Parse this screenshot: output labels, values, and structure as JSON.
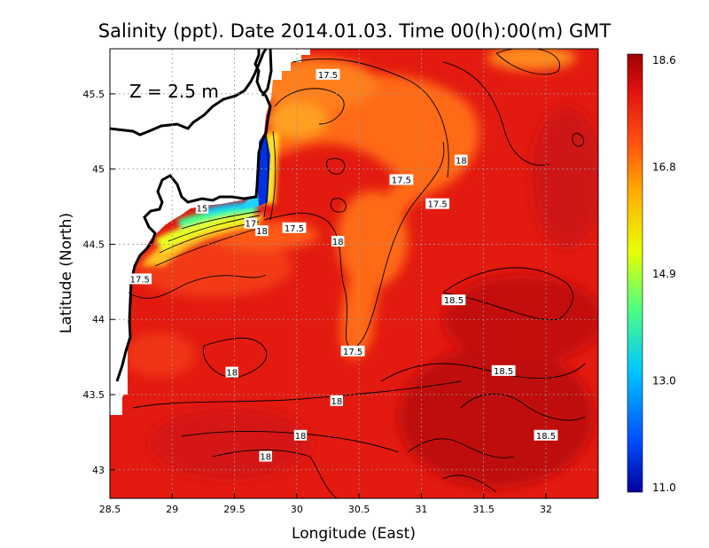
{
  "chart_data": {
    "type": "heatmap",
    "title": "Salinity (ppt). Date 2014.01.03. Time 00(h):00(m) GMT",
    "xlabel": "Longitude (East)",
    "ylabel": "Latitude (North)",
    "annotation": "Z = 2.5 m",
    "xlim": [
      28.5,
      32.42
    ],
    "ylim": [
      42.81,
      45.8
    ],
    "grid": true,
    "x_ticks": [
      28.5,
      29,
      29.5,
      30,
      30.5,
      31,
      31.5,
      32
    ],
    "x_tick_labels": [
      "28.5",
      "29",
      "29.5",
      "30",
      "30.5",
      "31",
      "31.5",
      "32"
    ],
    "y_ticks": [
      43,
      43.5,
      44,
      44.5,
      45,
      45.5
    ],
    "y_tick_labels": [
      "43",
      "43.5",
      "44",
      "44.5",
      "45",
      "45.5"
    ],
    "colorbar": {
      "min": 11.0,
      "max": 18.6,
      "tick_labels": [
        "18.6",
        "16.8",
        "14.9",
        "13.0",
        "11.0"
      ],
      "stops": [
        "#0000a0",
        "#0050ff",
        "#00c8ff",
        "#50ff80",
        "#e8ff00",
        "#ffb000",
        "#ff5010",
        "#e01010",
        "#a00000"
      ]
    },
    "contour_labels": [
      {
        "text": "17.5",
        "lon": 30.25,
        "lat": 45.63
      },
      {
        "text": "18",
        "lon": 31.32,
        "lat": 45.06
      },
      {
        "text": "17.5",
        "lon": 30.84,
        "lat": 44.93
      },
      {
        "text": "17.5",
        "lon": 31.13,
        "lat": 44.77
      },
      {
        "text": "15",
        "lon": 29.24,
        "lat": 44.74
      },
      {
        "text": "17",
        "lon": 29.63,
        "lat": 44.64
      },
      {
        "text": "18",
        "lon": 29.72,
        "lat": 44.59
      },
      {
        "text": "17.5",
        "lon": 29.98,
        "lat": 44.61
      },
      {
        "text": "18",
        "lon": 30.33,
        "lat": 44.52
      },
      {
        "text": "17.5",
        "lon": 28.74,
        "lat": 44.27
      },
      {
        "text": "18.5",
        "lon": 31.26,
        "lat": 44.13
      },
      {
        "text": "17.5",
        "lon": 30.45,
        "lat": 43.79
      },
      {
        "text": "18",
        "lon": 29.48,
        "lat": 43.65
      },
      {
        "text": "18.5",
        "lon": 31.66,
        "lat": 43.66
      },
      {
        "text": "18",
        "lon": 30.32,
        "lat": 43.46
      },
      {
        "text": "18",
        "lon": 30.03,
        "lat": 43.23
      },
      {
        "text": "18.5",
        "lon": 32.0,
        "lat": 43.23
      },
      {
        "text": "18",
        "lon": 29.75,
        "lat": 43.09
      }
    ],
    "colors": {
      "background_field": "#e31a10",
      "plume": "#ff7a1a",
      "dense_high": "#b70d0d",
      "land": "#ffffff",
      "coast": "#000000"
    }
  }
}
